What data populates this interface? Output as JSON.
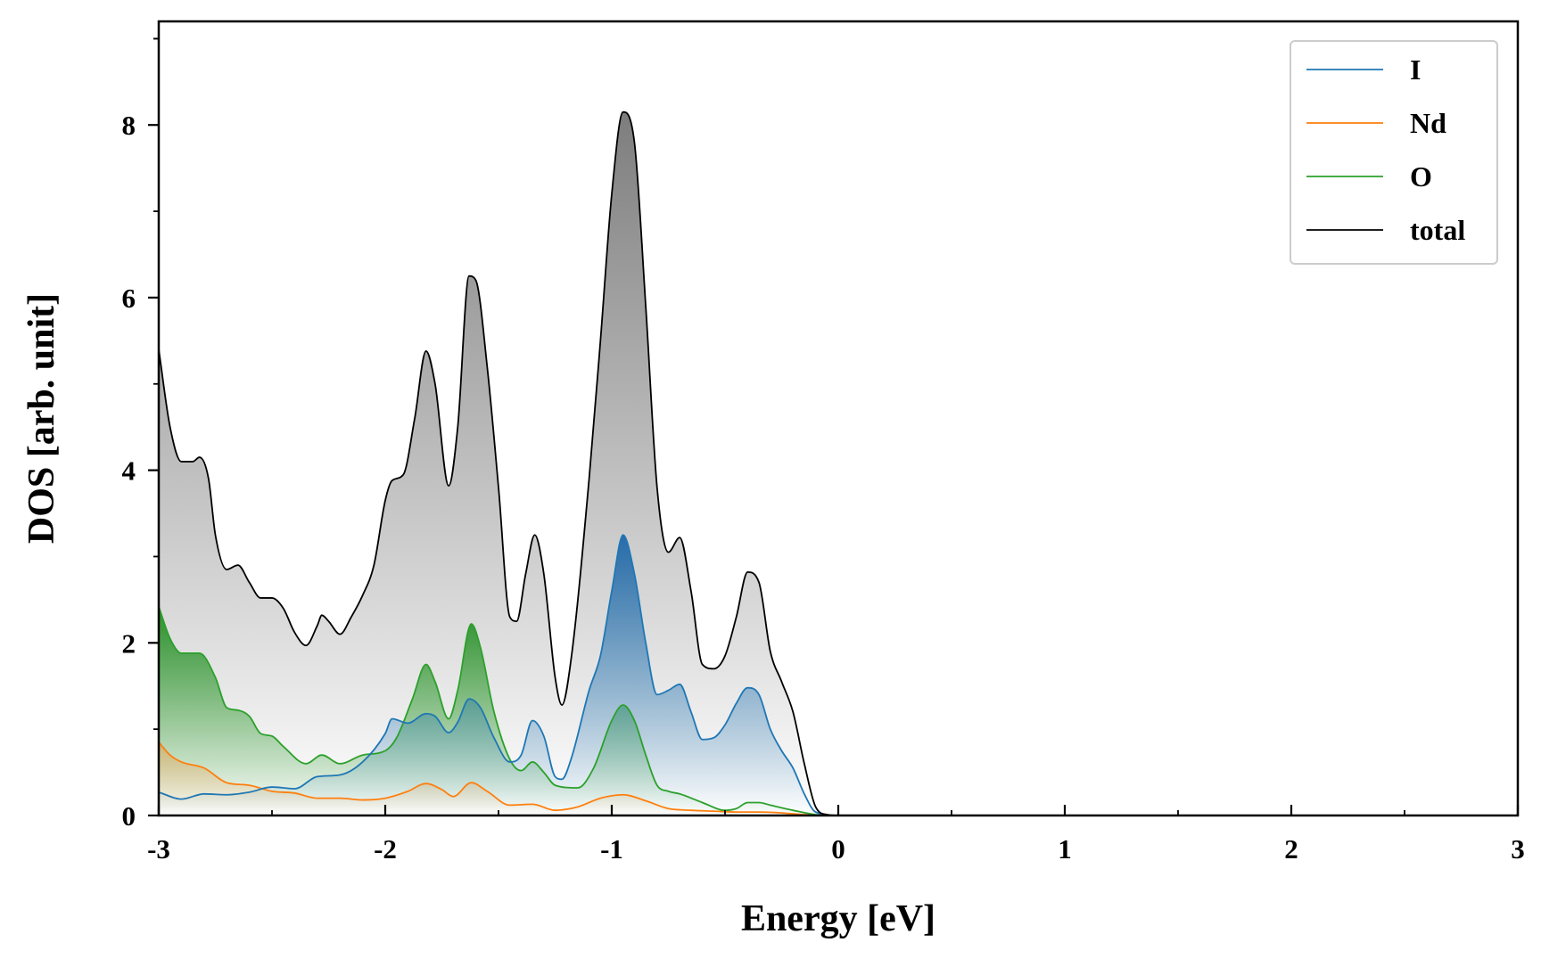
{
  "chart_data": {
    "type": "area",
    "title": "",
    "xlabel": "Energy [eV]",
    "ylabel": "DOS [arb. unit]",
    "xlim": [
      -3,
      3
    ],
    "ylim": [
      0,
      9.2
    ],
    "xticks": [
      "-3",
      "-2",
      "-1",
      "0",
      "1",
      "2",
      "3"
    ],
    "yticks": [
      "0",
      "2",
      "4",
      "6",
      "8"
    ],
    "grid": false,
    "legend_position": "top-right",
    "series": [
      {
        "name": "I",
        "color": "#1f77b4",
        "points": [
          [
            -3.0,
            0.27
          ],
          [
            -2.9,
            0.19
          ],
          [
            -2.8,
            0.25
          ],
          [
            -2.7,
            0.24
          ],
          [
            -2.6,
            0.27
          ],
          [
            -2.5,
            0.33
          ],
          [
            -2.4,
            0.31
          ],
          [
            -2.3,
            0.45
          ],
          [
            -2.2,
            0.47
          ],
          [
            -2.1,
            0.62
          ],
          [
            -2.0,
            0.95
          ],
          [
            -1.97,
            1.12
          ],
          [
            -1.9,
            1.07
          ],
          [
            -1.82,
            1.18
          ],
          [
            -1.78,
            1.15
          ],
          [
            -1.72,
            0.96
          ],
          [
            -1.68,
            1.08
          ],
          [
            -1.63,
            1.35
          ],
          [
            -1.58,
            1.25
          ],
          [
            -1.52,
            0.9
          ],
          [
            -1.45,
            0.62
          ],
          [
            -1.4,
            0.7
          ],
          [
            -1.35,
            1.1
          ],
          [
            -1.3,
            0.92
          ],
          [
            -1.25,
            0.45
          ],
          [
            -1.22,
            0.42
          ],
          [
            -1.18,
            0.65
          ],
          [
            -1.1,
            1.45
          ],
          [
            -1.05,
            1.85
          ],
          [
            -1.0,
            2.6
          ],
          [
            -0.95,
            3.25
          ],
          [
            -0.9,
            2.8
          ],
          [
            -0.85,
            2.0
          ],
          [
            -0.8,
            1.4
          ],
          [
            -0.75,
            1.45
          ],
          [
            -0.7,
            1.52
          ],
          [
            -0.65,
            1.2
          ],
          [
            -0.6,
            0.88
          ],
          [
            -0.55,
            0.9
          ],
          [
            -0.5,
            1.05
          ],
          [
            -0.45,
            1.3
          ],
          [
            -0.4,
            1.48
          ],
          [
            -0.35,
            1.4
          ],
          [
            -0.3,
            1.0
          ],
          [
            -0.25,
            0.75
          ],
          [
            -0.2,
            0.55
          ],
          [
            -0.15,
            0.25
          ],
          [
            -0.1,
            0.04
          ],
          [
            0.0,
            0.0
          ],
          [
            3.0,
            0.0
          ]
        ]
      },
      {
        "name": "Nd",
        "color": "#ff7f0e",
        "points": [
          [
            -3.0,
            0.85
          ],
          [
            -2.95,
            0.7
          ],
          [
            -2.9,
            0.62
          ],
          [
            -2.8,
            0.55
          ],
          [
            -2.7,
            0.38
          ],
          [
            -2.6,
            0.35
          ],
          [
            -2.5,
            0.28
          ],
          [
            -2.4,
            0.26
          ],
          [
            -2.3,
            0.2
          ],
          [
            -2.2,
            0.2
          ],
          [
            -2.1,
            0.18
          ],
          [
            -2.0,
            0.2
          ],
          [
            -1.9,
            0.28
          ],
          [
            -1.82,
            0.37
          ],
          [
            -1.75,
            0.3
          ],
          [
            -1.7,
            0.22
          ],
          [
            -1.62,
            0.38
          ],
          [
            -1.55,
            0.28
          ],
          [
            -1.45,
            0.12
          ],
          [
            -1.35,
            0.13
          ],
          [
            -1.25,
            0.06
          ],
          [
            -1.15,
            0.1
          ],
          [
            -1.05,
            0.2
          ],
          [
            -0.95,
            0.24
          ],
          [
            -0.85,
            0.17
          ],
          [
            -0.75,
            0.08
          ],
          [
            -0.65,
            0.06
          ],
          [
            -0.55,
            0.05
          ],
          [
            -0.45,
            0.04
          ],
          [
            -0.35,
            0.04
          ],
          [
            -0.25,
            0.03
          ],
          [
            -0.15,
            0.01
          ],
          [
            0.0,
            0.0
          ],
          [
            3.0,
            0.0
          ]
        ]
      },
      {
        "name": "O",
        "color": "#2ca02c",
        "points": [
          [
            -3.0,
            2.42
          ],
          [
            -2.95,
            2.05
          ],
          [
            -2.9,
            1.88
          ],
          [
            -2.82,
            1.88
          ],
          [
            -2.75,
            1.6
          ],
          [
            -2.7,
            1.25
          ],
          [
            -2.65,
            1.22
          ],
          [
            -2.6,
            1.15
          ],
          [
            -2.55,
            0.95
          ],
          [
            -2.5,
            0.92
          ],
          [
            -2.45,
            0.8
          ],
          [
            -2.35,
            0.6
          ],
          [
            -2.28,
            0.7
          ],
          [
            -2.2,
            0.6
          ],
          [
            -2.1,
            0.7
          ],
          [
            -2.0,
            0.75
          ],
          [
            -1.95,
            0.9
          ],
          [
            -1.88,
            1.35
          ],
          [
            -1.82,
            1.75
          ],
          [
            -1.78,
            1.55
          ],
          [
            -1.72,
            1.12
          ],
          [
            -1.68,
            1.45
          ],
          [
            -1.62,
            2.22
          ],
          [
            -1.58,
            1.95
          ],
          [
            -1.52,
            1.2
          ],
          [
            -1.45,
            0.65
          ],
          [
            -1.4,
            0.52
          ],
          [
            -1.35,
            0.62
          ],
          [
            -1.3,
            0.5
          ],
          [
            -1.25,
            0.35
          ],
          [
            -1.15,
            0.32
          ],
          [
            -1.08,
            0.55
          ],
          [
            -1.0,
            1.1
          ],
          [
            -0.95,
            1.28
          ],
          [
            -0.9,
            1.1
          ],
          [
            -0.85,
            0.7
          ],
          [
            -0.8,
            0.35
          ],
          [
            -0.75,
            0.28
          ],
          [
            -0.7,
            0.25
          ],
          [
            -0.6,
            0.15
          ],
          [
            -0.5,
            0.06
          ],
          [
            -0.45,
            0.08
          ],
          [
            -0.4,
            0.15
          ],
          [
            -0.35,
            0.15
          ],
          [
            -0.3,
            0.12
          ],
          [
            -0.2,
            0.06
          ],
          [
            -0.1,
            0.01
          ],
          [
            0.0,
            0.0
          ],
          [
            3.0,
            0.0
          ]
        ]
      },
      {
        "name": "total",
        "color": "#000000",
        "points": [
          [
            -3.0,
            5.4
          ],
          [
            -2.95,
            4.5
          ],
          [
            -2.9,
            4.1
          ],
          [
            -2.85,
            4.1
          ],
          [
            -2.82,
            4.15
          ],
          [
            -2.78,
            3.9
          ],
          [
            -2.75,
            3.25
          ],
          [
            -2.7,
            2.85
          ],
          [
            -2.65,
            2.9
          ],
          [
            -2.6,
            2.7
          ],
          [
            -2.55,
            2.52
          ],
          [
            -2.5,
            2.52
          ],
          [
            -2.45,
            2.4
          ],
          [
            -2.4,
            2.12
          ],
          [
            -2.35,
            1.97
          ],
          [
            -2.3,
            2.2
          ],
          [
            -2.28,
            2.32
          ],
          [
            -2.25,
            2.25
          ],
          [
            -2.2,
            2.1
          ],
          [
            -2.15,
            2.3
          ],
          [
            -2.1,
            2.55
          ],
          [
            -2.05,
            2.9
          ],
          [
            -2.0,
            3.65
          ],
          [
            -1.97,
            3.88
          ],
          [
            -1.92,
            3.95
          ],
          [
            -1.87,
            4.6
          ],
          [
            -1.82,
            5.38
          ],
          [
            -1.78,
            5.0
          ],
          [
            -1.72,
            3.82
          ],
          [
            -1.68,
            4.5
          ],
          [
            -1.63,
            6.25
          ],
          [
            -1.6,
            6.2
          ],
          [
            -1.55,
            5.2
          ],
          [
            -1.5,
            3.8
          ],
          [
            -1.45,
            2.3
          ],
          [
            -1.42,
            2.25
          ],
          [
            -1.38,
            2.8
          ],
          [
            -1.34,
            3.25
          ],
          [
            -1.3,
            2.8
          ],
          [
            -1.25,
            1.6
          ],
          [
            -1.22,
            1.28
          ],
          [
            -1.18,
            1.8
          ],
          [
            -1.1,
            3.9
          ],
          [
            -1.05,
            5.5
          ],
          [
            -1.0,
            7.2
          ],
          [
            -0.95,
            8.15
          ],
          [
            -0.9,
            7.8
          ],
          [
            -0.85,
            5.9
          ],
          [
            -0.8,
            3.8
          ],
          [
            -0.75,
            3.05
          ],
          [
            -0.7,
            3.22
          ],
          [
            -0.65,
            2.6
          ],
          [
            -0.6,
            1.75
          ],
          [
            -0.55,
            1.7
          ],
          [
            -0.5,
            1.85
          ],
          [
            -0.45,
            2.3
          ],
          [
            -0.4,
            2.82
          ],
          [
            -0.35,
            2.7
          ],
          [
            -0.3,
            1.9
          ],
          [
            -0.25,
            1.55
          ],
          [
            -0.2,
            1.2
          ],
          [
            -0.15,
            0.6
          ],
          [
            -0.1,
            0.1
          ],
          [
            -0.05,
            0.01
          ],
          [
            0.0,
            0.0
          ],
          [
            3.0,
            0.0
          ]
        ]
      }
    ]
  }
}
